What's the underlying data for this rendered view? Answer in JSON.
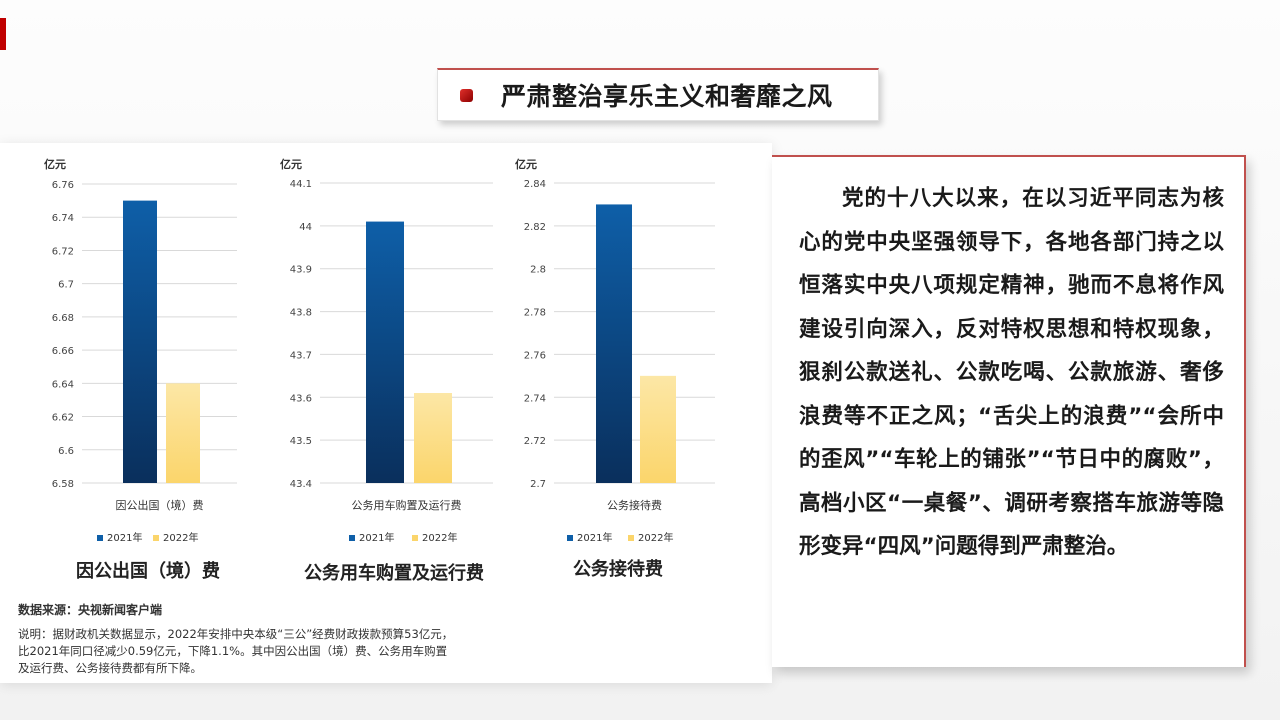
{
  "title": "严肃整治享乐主义和奢靡之风",
  "chart_data": [
    {
      "type": "bar",
      "ylabel": "亿元",
      "categories": [
        "因公出国（境）费"
      ],
      "series": [
        {
          "name": "2021年",
          "values": [
            6.75
          ]
        },
        {
          "name": "2022年",
          "values": [
            6.64
          ]
        }
      ],
      "ylim": [
        6.58,
        6.76
      ],
      "yticks": [
        "6.76",
        "6.74",
        "6.72",
        "6.7",
        "6.68",
        "6.66",
        "6.64",
        "6.62",
        "6.6",
        "6.58"
      ],
      "caption": "因公出国（境）费",
      "grid": true,
      "legend": "bottom"
    },
    {
      "type": "bar",
      "ylabel": "亿元",
      "categories": [
        "公务用车购置及运行费"
      ],
      "series": [
        {
          "name": "2021年",
          "values": [
            44.01
          ]
        },
        {
          "name": "2022年",
          "values": [
            43.61
          ]
        }
      ],
      "ylim": [
        43.4,
        44.1
      ],
      "yticks": [
        "44.1",
        "44",
        "43.9",
        "43.8",
        "43.7",
        "43.6",
        "43.5",
        "43.4"
      ],
      "caption": "公务用车购置及运行费",
      "grid": true,
      "legend": "bottom"
    },
    {
      "type": "bar",
      "ylabel": "亿元",
      "categories": [
        "公务接待费"
      ],
      "series": [
        {
          "name": "2021年",
          "values": [
            2.83
          ]
        },
        {
          "name": "2022年",
          "values": [
            2.75
          ]
        }
      ],
      "ylim": [
        2.7,
        2.84
      ],
      "yticks": [
        "2.84",
        "2.82",
        "2.8",
        "2.78",
        "2.76",
        "2.74",
        "2.72",
        "2.7"
      ],
      "caption": "公务接待费",
      "grid": true,
      "legend": "bottom"
    }
  ],
  "colors": {
    "series_2021": "#0e5fa8",
    "series_2021_dark": "#0a2f5c",
    "series_2022": "#fce7a6",
    "series_2022_light": "#fbd56b",
    "accent": "#c0504d"
  },
  "source": "数据来源：央视新闻客户端",
  "note": "说明：据财政机关数据显示，2022年安排中央本级“三公”经费财政拨款预算53亿元，比2021年同口径减少0.59亿元，下降1.1%。其中因公出国（境）费、公务用车购置及运行费、公务接待费都有所下降。",
  "paragraph": "党的十八大以来，在以习近平同志为核心的党中央坚强领导下，各地各部门持之以恒落实中央八项规定精神，驰而不息将作风建设引向深入，反对特权思想和特权现象，狠刹公款送礼、公款吃喝、公款旅游、奢侈浪费等不正之风；“舌尖上的浪费”“会所中的歪风”“车轮上的铺张”“节日中的腐败”，高档小区“一桌餐”、调研考察搭车旅游等隐形变异“四风”问题得到严肃整治。"
}
